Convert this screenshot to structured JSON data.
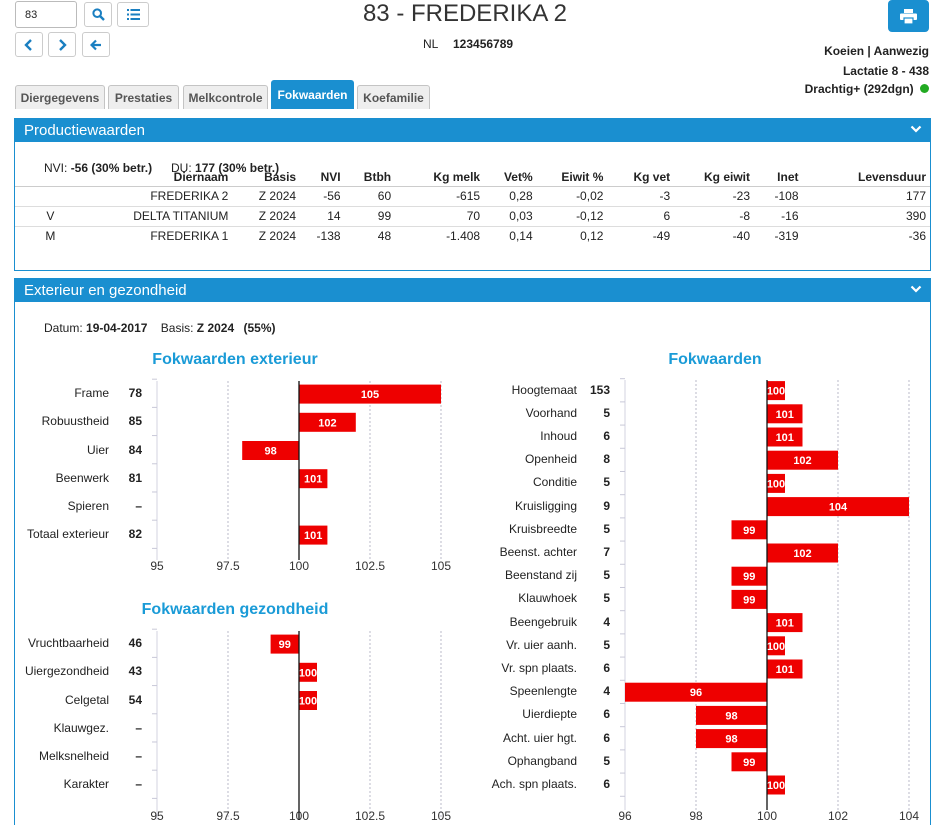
{
  "search": {
    "value": "83"
  },
  "header": {
    "title": "83 - FREDERIKA 2",
    "nl_label": "NL",
    "nl_number": "123456789",
    "status": "Koeien | Aanwezig",
    "lactation": "Lactatie 8 - 438",
    "pregnancy": "Drachtig+ (292dgn)"
  },
  "colors": {
    "accent": "#1a8fd0",
    "bar": "#ee0000",
    "status_dot": "#22aa22"
  },
  "tabs": [
    "Diergegevens",
    "Prestaties",
    "Melkcontrole",
    "Fokwaarden",
    "Koefamilie"
  ],
  "active_tab": "Fokwaarden",
  "production": {
    "title": "Productiewaarden",
    "nvi_label": "NVI:",
    "nvi_value": "-56",
    "nvi_betr": "(30% betr.)",
    "du_label": "DU:",
    "du_value": "177",
    "du_betr": "(30% betr.)",
    "columns": [
      "",
      "Diernaam",
      "Basis",
      "NVI",
      "Btbh",
      "Kg melk",
      "Vet%",
      "Eiwit %",
      "Kg vet",
      "Kg eiwit",
      "Inet",
      "Levensduur"
    ],
    "rows": [
      [
        "",
        "FREDERIKA 2",
        "Z 2024",
        "-56",
        "60",
        "-615",
        "0,28",
        "-0,02",
        "-3",
        "-23",
        "-108",
        "177"
      ],
      [
        "V",
        "DELTA TITANIUM",
        "Z 2024",
        "14",
        "99",
        "70",
        "0,03",
        "-0,12",
        "6",
        "-8",
        "-16",
        "390"
      ],
      [
        "M",
        "FREDERIKA 1",
        "Z 2024",
        "-138",
        "48",
        "-1.408",
        "0,14",
        "0,12",
        "-49",
        "-40",
        "-319",
        "-36"
      ]
    ]
  },
  "exterior": {
    "title": "Exterieur en gezondheid",
    "date_label": "Datum:",
    "date_value": "19-04-2017",
    "basis_label": "Basis:",
    "basis_value": "Z 2024",
    "basis_pct": "(55%)"
  },
  "chart_data": [
    {
      "type": "bar",
      "title": "Fokwaarden exterieur",
      "orientation": "horizontal",
      "baseline": 100,
      "xlim": [
        95,
        105
      ],
      "xticks": [
        "95",
        "97.5",
        "100",
        "102.5",
        "105"
      ],
      "categories": [
        "Frame",
        "Robuustheid",
        "Uier",
        "Beenwerk",
        "Spieren",
        "Totaal exterieur"
      ],
      "counts": [
        "78",
        "85",
        "84",
        "81",
        "–",
        "82"
      ],
      "values": [
        105,
        102,
        98,
        101,
        null,
        101
      ]
    },
    {
      "type": "bar",
      "title": "Fokwaarden gezondheid",
      "orientation": "horizontal",
      "baseline": 100,
      "xlim": [
        95,
        105
      ],
      "xticks": [
        "95",
        "97.5",
        "100",
        "102.5",
        "105"
      ],
      "categories": [
        "Vruchtbaarheid",
        "Uiergezondheid",
        "Celgetal",
        "Klauwgez.",
        "Melksnelheid",
        "Karakter"
      ],
      "counts": [
        "46",
        "43",
        "54",
        "–",
        "–",
        "–"
      ],
      "values": [
        99,
        100,
        100,
        null,
        null,
        null
      ]
    },
    {
      "type": "bar",
      "title": "Fokwaarden",
      "orientation": "horizontal",
      "baseline": 100,
      "xlim": [
        96,
        104
      ],
      "xticks": [
        "96",
        "98",
        "100",
        "102",
        "104"
      ],
      "categories": [
        "Hoogtemaat",
        "Voorhand",
        "Inhoud",
        "Openheid",
        "Conditie",
        "Kruisligging",
        "Kruisbreedte",
        "Beenst. achter",
        "Beenstand zij",
        "Klauwhoek",
        "Beengebruik",
        "Vr. uier aanh.",
        "Vr. spn plaats.",
        "Speenlengte",
        "Uierdiepte",
        "Acht. uier hgt.",
        "Ophangband",
        "Ach. spn plaats."
      ],
      "counts": [
        "153",
        "5",
        "6",
        "8",
        "5",
        "9",
        "5",
        "7",
        "5",
        "5",
        "4",
        "5",
        "6",
        "4",
        "6",
        "6",
        "5",
        "6"
      ],
      "values": [
        100,
        101,
        101,
        102,
        100,
        104,
        99,
        102,
        99,
        99,
        101,
        100,
        101,
        96,
        98,
        98,
        99,
        100
      ]
    }
  ]
}
